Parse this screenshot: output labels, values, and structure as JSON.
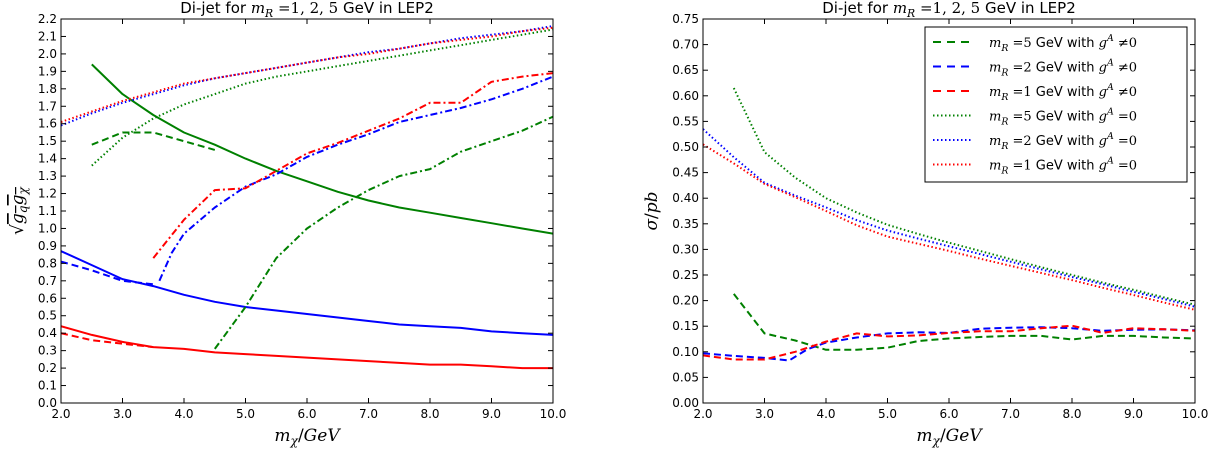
{
  "chart_data": [
    {
      "type": "line",
      "title_prefix": "Di-jet for ",
      "title_math": "m_R =1, 2, 5",
      "title_suffix": " GeV in LEP2",
      "xlabel": "m_χ/GeV",
      "ylabel": "√(g_q g_χ)",
      "xlim": [
        2.0,
        10.0
      ],
      "ylim": [
        0.0,
        2.2
      ],
      "xticks": [
        "2.0",
        "3.0",
        "4.0",
        "5.0",
        "6.0",
        "7.0",
        "8.0",
        "9.0",
        "10.0"
      ],
      "yticks": [
        "0.0",
        "0.1",
        "0.2",
        "0.3",
        "0.4",
        "0.5",
        "0.6",
        "0.7",
        "0.8",
        "0.9",
        "1.0",
        "1.1",
        "1.2",
        "1.3",
        "1.4",
        "1.5",
        "1.6",
        "1.7",
        "1.8",
        "1.9",
        "2.0",
        "2.1",
        "2.2"
      ],
      "grid": false,
      "series": [
        {
          "color": "#008000",
          "style": "solid",
          "x": [
            2.5,
            3.0,
            3.5,
            4.0,
            4.5,
            5.0,
            5.5,
            6.0,
            6.5,
            7.0,
            7.5,
            8.0,
            8.5,
            9.0,
            9.5,
            10.0
          ],
          "y": [
            1.94,
            1.77,
            1.65,
            1.55,
            1.48,
            1.4,
            1.33,
            1.27,
            1.21,
            1.16,
            1.12,
            1.09,
            1.06,
            1.03,
            1.0,
            0.97
          ]
        },
        {
          "color": "#0000ff",
          "style": "solid",
          "x": [
            2.0,
            2.5,
            3.0,
            3.5,
            4.0,
            4.5,
            5.0,
            5.5,
            6.0,
            6.5,
            7.0,
            7.5,
            8.0,
            8.5,
            9.0,
            9.5,
            10.0
          ],
          "y": [
            0.87,
            0.79,
            0.71,
            0.67,
            0.62,
            0.58,
            0.55,
            0.53,
            0.51,
            0.49,
            0.47,
            0.45,
            0.44,
            0.43,
            0.41,
            0.4,
            0.39
          ]
        },
        {
          "color": "#ff0000",
          "style": "solid",
          "x": [
            2.0,
            2.5,
            3.0,
            3.5,
            4.0,
            4.5,
            5.0,
            5.5,
            6.0,
            6.5,
            7.0,
            7.5,
            8.0,
            8.5,
            9.0,
            9.5,
            10.0
          ],
          "y": [
            0.44,
            0.39,
            0.35,
            0.32,
            0.31,
            0.29,
            0.28,
            0.27,
            0.26,
            0.25,
            0.24,
            0.23,
            0.22,
            0.22,
            0.21,
            0.2,
            0.2
          ]
        },
        {
          "color": "#008000",
          "style": "dashed",
          "x": [
            2.5,
            3.0,
            3.5,
            4.0,
            4.5
          ],
          "y": [
            1.48,
            1.55,
            1.55,
            1.5,
            1.45
          ]
        },
        {
          "color": "#0000ff",
          "style": "dashed",
          "x": [
            2.0,
            2.5,
            3.0,
            3.5
          ],
          "y": [
            0.81,
            0.76,
            0.7,
            0.68
          ]
        },
        {
          "color": "#ff0000",
          "style": "dashed",
          "x": [
            2.0,
            2.5,
            3.0,
            3.5
          ],
          "y": [
            0.4,
            0.36,
            0.34,
            0.32
          ]
        },
        {
          "color": "#008000",
          "style": "dotted",
          "x": [
            2.5,
            3.0,
            3.5,
            4.0,
            4.5,
            5.0,
            5.5,
            6.0,
            6.5,
            7.0,
            7.5,
            8.0,
            8.5,
            9.0,
            9.5,
            10.0
          ],
          "y": [
            1.36,
            1.52,
            1.63,
            1.71,
            1.77,
            1.83,
            1.87,
            1.9,
            1.93,
            1.96,
            1.99,
            2.02,
            2.05,
            2.08,
            2.11,
            2.14
          ]
        },
        {
          "color": "#0000ff",
          "style": "dotted",
          "x": [
            2.0,
            2.5,
            3.0,
            3.5,
            4.0,
            4.5,
            5.0,
            5.5,
            6.0,
            6.5,
            7.0,
            7.5,
            8.0,
            8.5,
            9.0,
            9.5,
            10.0
          ],
          "y": [
            1.59,
            1.66,
            1.72,
            1.77,
            1.82,
            1.86,
            1.89,
            1.92,
            1.95,
            1.98,
            2.01,
            2.03,
            2.06,
            2.09,
            2.11,
            2.13,
            2.16
          ]
        },
        {
          "color": "#ff0000",
          "style": "dotted",
          "x": [
            2.0,
            2.5,
            3.0,
            3.5,
            4.0,
            4.5,
            5.0,
            5.5,
            6.0,
            6.5,
            7.0,
            7.5,
            8.0,
            8.5,
            9.0,
            9.5,
            10.0
          ],
          "y": [
            1.61,
            1.67,
            1.73,
            1.78,
            1.83,
            1.86,
            1.89,
            1.92,
            1.95,
            1.98,
            2.0,
            2.03,
            2.06,
            2.08,
            2.1,
            2.13,
            2.15
          ]
        },
        {
          "color": "#008000",
          "style": "dashdot",
          "x": [
            4.5,
            5.0,
            5.5,
            6.0,
            6.5,
            7.0,
            7.5,
            8.0,
            8.5,
            9.0,
            9.5,
            10.0
          ],
          "y": [
            0.31,
            0.55,
            0.83,
            1.0,
            1.12,
            1.22,
            1.3,
            1.34,
            1.44,
            1.5,
            1.56,
            1.64
          ]
        },
        {
          "color": "#0000ff",
          "style": "dashdot",
          "x": [
            3.6,
            3.8,
            4.0,
            4.5,
            5.0,
            5.5,
            6.0,
            6.5,
            7.0,
            7.5,
            8.0,
            8.5,
            9.0,
            9.5,
            10.0
          ],
          "y": [
            0.7,
            0.86,
            0.97,
            1.12,
            1.24,
            1.31,
            1.41,
            1.48,
            1.54,
            1.61,
            1.65,
            1.69,
            1.74,
            1.8,
            1.87
          ]
        },
        {
          "color": "#ff0000",
          "style": "dashdot",
          "x": [
            3.5,
            4.0,
            4.5,
            5.0,
            5.5,
            6.0,
            6.5,
            7.0,
            7.5,
            8.0,
            8.5,
            9.0,
            9.5,
            10.0
          ],
          "y": [
            0.83,
            1.05,
            1.22,
            1.23,
            1.33,
            1.43,
            1.49,
            1.56,
            1.63,
            1.72,
            1.72,
            1.84,
            1.87,
            1.89
          ]
        }
      ]
    },
    {
      "type": "line",
      "title_prefix": "Di-jet for ",
      "title_math": "m_R =1, 2, 5",
      "title_suffix": " GeV in LEP2",
      "xlabel": "m_χ/GeV",
      "ylabel": "σ/pb",
      "xlim": [
        2.0,
        10.0
      ],
      "ylim": [
        0.0,
        0.75
      ],
      "xticks": [
        "2.0",
        "3.0",
        "4.0",
        "5.0",
        "6.0",
        "7.0",
        "8.0",
        "9.0",
        "10.0"
      ],
      "yticks": [
        "0.00",
        "0.05",
        "0.10",
        "0.15",
        "0.20",
        "0.25",
        "0.30",
        "0.35",
        "0.40",
        "0.45",
        "0.50",
        "0.55",
        "0.60",
        "0.65",
        "0.70",
        "0.75"
      ],
      "grid": false,
      "legend_position": "top-right",
      "series": [
        {
          "name_math": "m_R =5",
          "name_suffix": " GeV with ",
          "name_cond_math": "g^A",
          "name_cond": " ≠0",
          "color": "#008000",
          "style": "dashed",
          "x": [
            2.5,
            3.0,
            3.5,
            4.0,
            4.5,
            5.0,
            5.5,
            6.0,
            6.5,
            7.0,
            7.5,
            8.0,
            8.5,
            9.0,
            9.5,
            10.0
          ],
          "y": [
            0.213,
            0.136,
            0.122,
            0.104,
            0.104,
            0.108,
            0.121,
            0.126,
            0.129,
            0.131,
            0.131,
            0.124,
            0.131,
            0.131,
            0.128,
            0.126
          ]
        },
        {
          "name_math": "m_R =2",
          "name_suffix": " GeV with ",
          "name_cond_math": "g^A",
          "name_cond": " ≠0",
          "color": "#0000ff",
          "style": "dashed",
          "x": [
            2.0,
            2.5,
            3.0,
            3.4,
            3.7,
            4.0,
            4.5,
            5.0,
            5.5,
            6.0,
            6.5,
            7.0,
            7.5,
            8.0,
            8.5,
            9.0,
            9.5,
            10.0
          ],
          "y": [
            0.097,
            0.092,
            0.088,
            0.083,
            0.105,
            0.118,
            0.128,
            0.136,
            0.138,
            0.137,
            0.145,
            0.147,
            0.148,
            0.146,
            0.141,
            0.143,
            0.144,
            0.142
          ]
        },
        {
          "name_math": "m_R =1",
          "name_suffix": " GeV with ",
          "name_cond_math": "g^A",
          "name_cond": " ≠0",
          "color": "#ff0000",
          "style": "dashed",
          "x": [
            2.0,
            2.5,
            3.0,
            3.5,
            4.0,
            4.5,
            5.0,
            5.5,
            6.0,
            6.5,
            7.0,
            7.5,
            8.0,
            8.5,
            9.0,
            9.5,
            10.0
          ],
          "y": [
            0.093,
            0.085,
            0.085,
            0.1,
            0.12,
            0.136,
            0.13,
            0.132,
            0.137,
            0.14,
            0.14,
            0.146,
            0.151,
            0.137,
            0.146,
            0.144,
            0.141
          ]
        },
        {
          "name_math": "m_R =5",
          "name_suffix": " GeV with ",
          "name_cond_math": "g^A",
          "name_cond": " =0",
          "color": "#008000",
          "style": "dotted",
          "x": [
            2.5,
            3.0,
            3.5,
            4.0,
            4.5,
            5.0,
            5.5,
            6.0,
            6.5,
            7.0,
            7.5,
            8.0,
            8.5,
            9.0,
            9.5,
            10.0
          ],
          "y": [
            0.615,
            0.49,
            0.44,
            0.4,
            0.372,
            0.348,
            0.33,
            0.313,
            0.297,
            0.281,
            0.265,
            0.25,
            0.235,
            0.221,
            0.206,
            0.192
          ]
        },
        {
          "name_math": "m_R =2",
          "name_suffix": " GeV with ",
          "name_cond_math": "g^A",
          "name_cond": " =0",
          "color": "#0000ff",
          "style": "dotted",
          "x": [
            2.0,
            2.5,
            3.0,
            3.5,
            4.0,
            4.5,
            5.0,
            5.5,
            6.0,
            6.5,
            7.0,
            7.5,
            8.0,
            8.5,
            9.0,
            9.5,
            10.0
          ],
          "y": [
            0.535,
            0.48,
            0.43,
            0.405,
            0.382,
            0.357,
            0.337,
            0.321,
            0.306,
            0.291,
            0.276,
            0.261,
            0.246,
            0.232,
            0.217,
            0.203,
            0.188
          ]
        },
        {
          "name_math": "m_R =1",
          "name_suffix": " GeV with ",
          "name_cond_math": "g^A",
          "name_cond": " =0",
          "color": "#ff0000",
          "style": "dotted",
          "x": [
            2.0,
            2.5,
            3.0,
            3.5,
            4.0,
            4.5,
            5.0,
            5.5,
            6.0,
            6.5,
            7.0,
            7.5,
            8.0,
            8.5,
            9.0,
            9.5,
            10.0
          ],
          "y": [
            0.505,
            0.468,
            0.428,
            0.402,
            0.375,
            0.347,
            0.325,
            0.311,
            0.297,
            0.282,
            0.268,
            0.254,
            0.24,
            0.225,
            0.211,
            0.196,
            0.182
          ]
        }
      ]
    }
  ]
}
